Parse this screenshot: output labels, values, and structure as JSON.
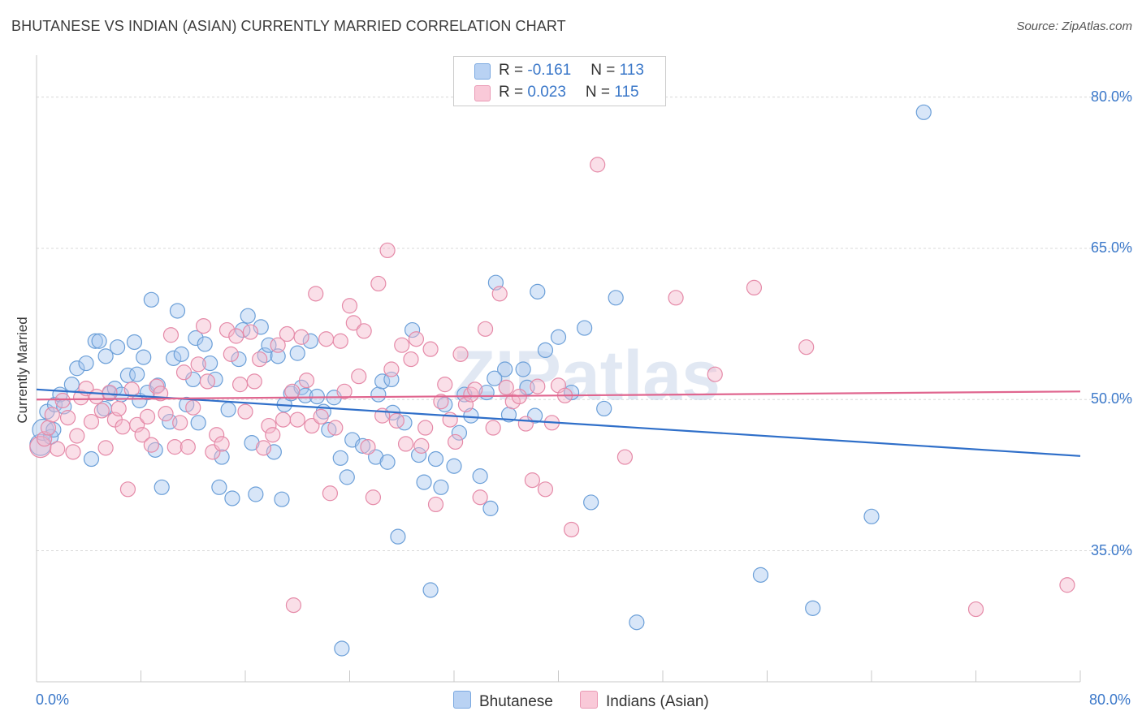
{
  "title": "BHUTANESE VS INDIAN (ASIAN) CURRENTLY MARRIED CORRELATION CHART",
  "source": "Source: ZipAtlas.com",
  "watermark": "ZIPatlas",
  "colors": {
    "blue_fill": "#a9c8f0",
    "blue_stroke": "#6b9fd8",
    "blue_line": "#2f6fc9",
    "pink_fill": "#f5b8cc",
    "pink_stroke": "#e58aa8",
    "pink_line": "#e0668f",
    "axis_text": "#3b78c9",
    "grid": "#d8d8d8"
  },
  "legend": {
    "rows": [
      {
        "r_label": "R = ",
        "r_value": "-0.161",
        "n_label": "N = ",
        "n_value": "113"
      },
      {
        "r_label": "R = ",
        "r_value": "0.023",
        "n_label": "N = ",
        "n_value": "115"
      }
    ]
  },
  "bottom_legend": [
    "Bhutanese",
    "Indians (Asian)"
  ],
  "chart_data": {
    "type": "scatter",
    "title": "BHUTANESE VS INDIAN (ASIAN) CURRENTLY MARRIED CORRELATION CHART",
    "xlabel": "",
    "ylabel": "Currently Married",
    "xlim": [
      0,
      80
    ],
    "ylim": [
      22,
      84
    ],
    "x_tick_labels": [
      "0.0%",
      "80.0%"
    ],
    "y_ticks": [
      35,
      50,
      65,
      80
    ],
    "y_tick_labels": [
      "35.0%",
      "50.0%",
      "65.0%",
      "80.0%"
    ],
    "grid": true,
    "legend_placement": "top-center",
    "series": [
      {
        "name": "Bhutanese",
        "r": -0.161,
        "n": 113,
        "trend": [
          [
            0,
            51.0
          ],
          [
            80,
            44.4
          ]
        ],
        "points": [
          [
            0.3,
            45.5
          ],
          [
            0.5,
            47.0
          ],
          [
            0.8,
            48.8
          ],
          [
            1.1,
            46.3
          ],
          [
            1.3,
            47.0
          ],
          [
            1.4,
            49.5
          ],
          [
            1.8,
            50.5
          ],
          [
            2.1,
            49.3
          ],
          [
            2.7,
            51.5
          ],
          [
            3.1,
            53.1
          ],
          [
            3.8,
            53.6
          ],
          [
            4.2,
            44.1
          ],
          [
            4.5,
            55.8
          ],
          [
            4.8,
            55.8
          ],
          [
            5.2,
            49.1
          ],
          [
            5.3,
            54.3
          ],
          [
            5.6,
            50.6
          ],
          [
            6.0,
            51.1
          ],
          [
            6.2,
            55.2
          ],
          [
            6.5,
            50.5
          ],
          [
            7.0,
            52.4
          ],
          [
            7.5,
            55.7
          ],
          [
            7.7,
            52.5
          ],
          [
            7.9,
            49.9
          ],
          [
            8.2,
            54.2
          ],
          [
            8.5,
            50.7
          ],
          [
            8.8,
            59.9
          ],
          [
            9.1,
            45.0
          ],
          [
            9.3,
            51.4
          ],
          [
            9.6,
            41.3
          ],
          [
            10.2,
            47.8
          ],
          [
            10.5,
            54.1
          ],
          [
            10.8,
            58.8
          ],
          [
            11.1,
            54.5
          ],
          [
            11.5,
            49.5
          ],
          [
            12.0,
            52.0
          ],
          [
            12.2,
            56.1
          ],
          [
            12.4,
            47.7
          ],
          [
            12.9,
            55.5
          ],
          [
            13.3,
            53.6
          ],
          [
            13.7,
            52.0
          ],
          [
            14.0,
            41.3
          ],
          [
            14.2,
            44.3
          ],
          [
            14.7,
            49.0
          ],
          [
            15.0,
            40.2
          ],
          [
            15.5,
            54.0
          ],
          [
            15.8,
            56.9
          ],
          [
            16.2,
            58.3
          ],
          [
            16.5,
            45.7
          ],
          [
            16.8,
            40.6
          ],
          [
            17.2,
            57.2
          ],
          [
            17.5,
            54.4
          ],
          [
            17.8,
            55.4
          ],
          [
            18.2,
            44.8
          ],
          [
            18.5,
            54.3
          ],
          [
            18.8,
            40.1
          ],
          [
            19.0,
            49.5
          ],
          [
            19.5,
            50.6
          ],
          [
            20.0,
            54.6
          ],
          [
            20.3,
            51.2
          ],
          [
            20.6,
            50.4
          ],
          [
            21.0,
            55.8
          ],
          [
            21.5,
            50.3
          ],
          [
            22.0,
            48.8
          ],
          [
            22.4,
            47.0
          ],
          [
            22.8,
            50.2
          ],
          [
            23.3,
            44.2
          ],
          [
            23.8,
            42.3
          ],
          [
            24.2,
            46.0
          ],
          [
            25.0,
            45.4
          ],
          [
            26.0,
            44.3
          ],
          [
            26.2,
            50.5
          ],
          [
            26.5,
            51.8
          ],
          [
            26.9,
            43.8
          ],
          [
            27.3,
            48.7
          ],
          [
            27.7,
            36.4
          ],
          [
            28.2,
            47.7
          ],
          [
            28.8,
            56.9
          ],
          [
            29.3,
            44.5
          ],
          [
            29.7,
            41.8
          ],
          [
            30.2,
            31.1
          ],
          [
            30.6,
            44.1
          ],
          [
            31.0,
            41.3
          ],
          [
            31.3,
            49.5
          ],
          [
            32.0,
            43.4
          ],
          [
            32.4,
            46.7
          ],
          [
            32.8,
            50.5
          ],
          [
            33.3,
            48.4
          ],
          [
            34.0,
            42.4
          ],
          [
            34.5,
            50.7
          ],
          [
            34.8,
            39.2
          ],
          [
            35.2,
            61.6
          ],
          [
            35.9,
            53.0
          ],
          [
            36.2,
            48.5
          ],
          [
            37.3,
            53.0
          ],
          [
            37.6,
            51.2
          ],
          [
            38.2,
            48.4
          ],
          [
            39.0,
            54.9
          ],
          [
            40.0,
            56.2
          ],
          [
            41.0,
            50.7
          ],
          [
            42.0,
            57.1
          ],
          [
            42.5,
            39.8
          ],
          [
            43.5,
            49.1
          ],
          [
            44.4,
            60.1
          ],
          [
            46.0,
            27.9
          ],
          [
            55.5,
            32.6
          ],
          [
            59.5,
            29.3
          ],
          [
            64.0,
            38.4
          ],
          [
            68.0,
            78.5
          ],
          [
            23.4,
            25.3
          ],
          [
            38.4,
            60.7
          ],
          [
            35.1,
            52.1
          ],
          [
            27.2,
            52.0
          ]
        ]
      },
      {
        "name": "Indians (Asian)",
        "r": 0.023,
        "n": 115,
        "trend": [
          [
            0,
            50.0
          ],
          [
            80,
            50.8
          ]
        ],
        "points": [
          [
            0.3,
            45.3
          ],
          [
            0.6,
            46.1
          ],
          [
            0.9,
            47.2
          ],
          [
            1.2,
            48.5
          ],
          [
            1.6,
            45.1
          ],
          [
            2.0,
            49.9
          ],
          [
            2.4,
            48.2
          ],
          [
            2.8,
            44.8
          ],
          [
            3.1,
            46.4
          ],
          [
            3.4,
            50.2
          ],
          [
            3.8,
            51.1
          ],
          [
            4.2,
            47.8
          ],
          [
            4.6,
            50.3
          ],
          [
            5.0,
            48.9
          ],
          [
            5.3,
            45.2
          ],
          [
            5.6,
            50.7
          ],
          [
            6.0,
            48.0
          ],
          [
            6.3,
            49.1
          ],
          [
            6.6,
            47.3
          ],
          [
            7.0,
            41.1
          ],
          [
            7.3,
            51.0
          ],
          [
            7.7,
            47.5
          ],
          [
            8.1,
            46.5
          ],
          [
            8.5,
            48.3
          ],
          [
            8.8,
            45.5
          ],
          [
            9.2,
            51.3
          ],
          [
            9.5,
            50.6
          ],
          [
            9.9,
            48.6
          ],
          [
            10.3,
            56.4
          ],
          [
            10.6,
            45.3
          ],
          [
            11.0,
            47.7
          ],
          [
            11.3,
            52.7
          ],
          [
            11.6,
            45.3
          ],
          [
            12.0,
            49.2
          ],
          [
            12.4,
            53.5
          ],
          [
            12.8,
            57.3
          ],
          [
            13.1,
            51.8
          ],
          [
            13.5,
            44.8
          ],
          [
            13.8,
            46.5
          ],
          [
            14.2,
            45.6
          ],
          [
            14.6,
            56.9
          ],
          [
            14.9,
            54.5
          ],
          [
            15.3,
            56.3
          ],
          [
            15.6,
            51.5
          ],
          [
            16.0,
            48.8
          ],
          [
            16.4,
            56.7
          ],
          [
            16.7,
            51.8
          ],
          [
            17.1,
            54.0
          ],
          [
            17.4,
            45.2
          ],
          [
            17.8,
            47.4
          ],
          [
            18.1,
            46.5
          ],
          [
            18.5,
            55.4
          ],
          [
            18.9,
            48.0
          ],
          [
            19.2,
            56.5
          ],
          [
            19.6,
            50.8
          ],
          [
            20.0,
            48.0
          ],
          [
            20.3,
            56.2
          ],
          [
            20.7,
            51.9
          ],
          [
            21.1,
            47.4
          ],
          [
            21.4,
            60.5
          ],
          [
            21.8,
            48.3
          ],
          [
            22.2,
            56.0
          ],
          [
            22.5,
            40.7
          ],
          [
            22.9,
            47.2
          ],
          [
            23.3,
            55.8
          ],
          [
            23.6,
            50.8
          ],
          [
            24.0,
            59.3
          ],
          [
            24.3,
            57.6
          ],
          [
            24.7,
            52.3
          ],
          [
            25.1,
            56.8
          ],
          [
            25.4,
            45.3
          ],
          [
            25.8,
            40.3
          ],
          [
            26.2,
            61.5
          ],
          [
            26.5,
            48.4
          ],
          [
            26.9,
            64.8
          ],
          [
            27.2,
            53.0
          ],
          [
            27.6,
            47.9
          ],
          [
            28.0,
            55.4
          ],
          [
            28.3,
            45.6
          ],
          [
            28.7,
            54.0
          ],
          [
            29.1,
            56.0
          ],
          [
            29.5,
            45.4
          ],
          [
            29.8,
            47.2
          ],
          [
            30.2,
            55.0
          ],
          [
            30.6,
            39.6
          ],
          [
            31.0,
            49.8
          ],
          [
            31.3,
            51.5
          ],
          [
            31.7,
            48.0
          ],
          [
            32.1,
            45.8
          ],
          [
            32.5,
            54.5
          ],
          [
            32.9,
            49.5
          ],
          [
            33.3,
            50.5
          ],
          [
            33.6,
            51.0
          ],
          [
            34.0,
            40.3
          ],
          [
            34.4,
            57.0
          ],
          [
            35.0,
            47.2
          ],
          [
            35.5,
            60.5
          ],
          [
            36.0,
            51.2
          ],
          [
            36.5,
            49.8
          ],
          [
            37.0,
            50.3
          ],
          [
            37.5,
            47.6
          ],
          [
            38.0,
            42.0
          ],
          [
            38.4,
            51.3
          ],
          [
            39.0,
            41.1
          ],
          [
            39.5,
            47.7
          ],
          [
            40.0,
            51.4
          ],
          [
            40.5,
            50.4
          ],
          [
            41.0,
            37.1
          ],
          [
            43.0,
            73.3
          ],
          [
            49.0,
            60.1
          ],
          [
            52.0,
            52.5
          ],
          [
            55.0,
            61.1
          ],
          [
            59.0,
            55.2
          ],
          [
            72.0,
            29.2
          ],
          [
            79.0,
            31.6
          ],
          [
            19.7,
            29.6
          ],
          [
            45.1,
            44.3
          ]
        ]
      }
    ]
  }
}
